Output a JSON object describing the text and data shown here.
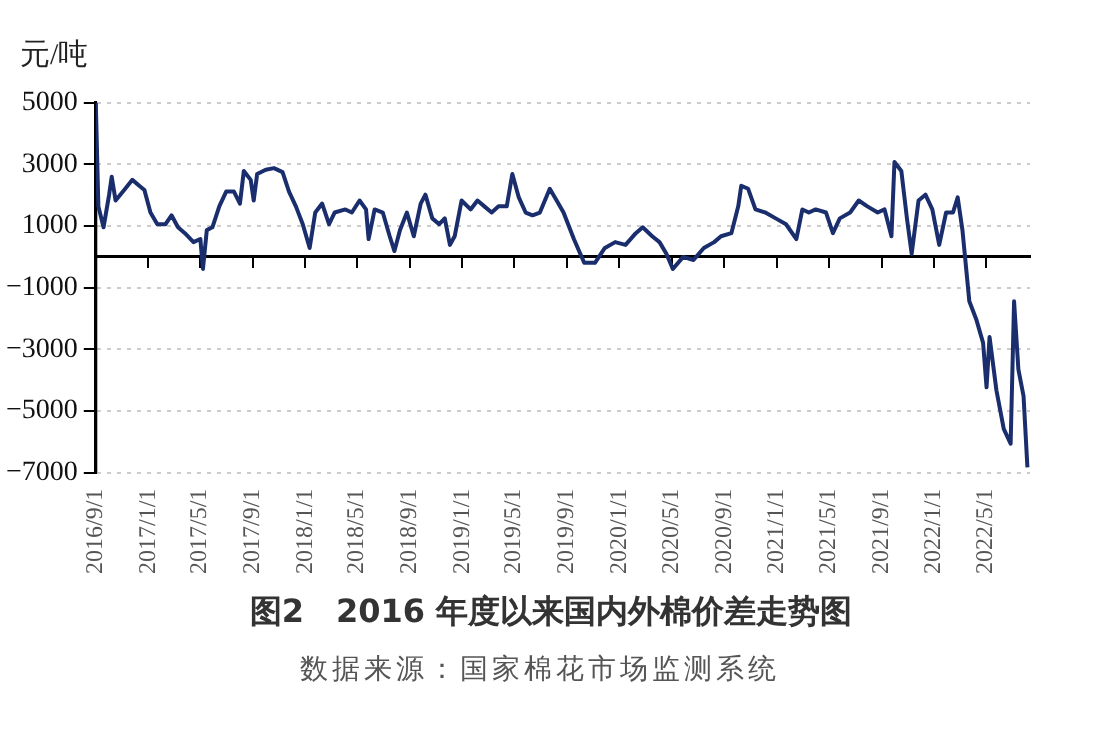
{
  "chart_data": {
    "type": "line",
    "title": "图2　2016 年度以来国内外棉价差走势图",
    "ylabel": "元/吨",
    "annotations": [
      "数据来源：国家棉花市场监测系统"
    ],
    "xlim": [
      "2016-09-01",
      "2022-08-12"
    ],
    "xticks": [
      {
        "value": "2016-09-01",
        "label": "2016/9/1"
      },
      {
        "value": "2017-01-01",
        "label": "2017/1/1"
      },
      {
        "value": "2017-05-01",
        "label": "2017/5/1"
      },
      {
        "value": "2017-09-01",
        "label": "2017/9/1"
      },
      {
        "value": "2018-01-01",
        "label": "2018/1/1"
      },
      {
        "value": "2018-05-01",
        "label": "2018/5/1"
      },
      {
        "value": "2018-09-01",
        "label": "2018/9/1"
      },
      {
        "value": "2019-01-01",
        "label": "2019/1/1"
      },
      {
        "value": "2019-05-01",
        "label": "2019/5/1"
      },
      {
        "value": "2019-09-01",
        "label": "2019/9/1"
      },
      {
        "value": "2020-01-01",
        "label": "2020/1/1"
      },
      {
        "value": "2020-05-01",
        "label": "2020/5/1"
      },
      {
        "value": "2020-09-01",
        "label": "2020/9/1"
      },
      {
        "value": "2021-01-01",
        "label": "2021/1/1"
      },
      {
        "value": "2021-05-01",
        "label": "2021/5/1"
      },
      {
        "value": "2021-09-01",
        "label": "2021/9/1"
      },
      {
        "value": "2022-01-01",
        "label": "2022/1/1"
      },
      {
        "value": "2022-05-01",
        "label": "2022/5/1"
      }
    ],
    "ylim": [
      -7000,
      5000
    ],
    "yticks": [
      5000,
      3000,
      1000,
      -1000,
      -3000,
      -5000,
      -7000
    ],
    "grid": "y",
    "legend": false,
    "marker": "none",
    "series": [
      {
        "color": "#1a2e6e",
        "x": [
          "2016-09-01",
          "2016-09-07",
          "2016-09-19",
          "2016-10-02",
          "2016-10-08",
          "2016-10-17",
          "2016-11-06",
          "2016-11-25",
          "2016-12-11",
          "2016-12-23",
          "2017-01-06",
          "2017-01-22",
          "2017-02-10",
          "2017-02-24",
          "2017-03-11",
          "2017-03-27",
          "2017-04-16",
          "2017-05-02",
          "2017-05-08",
          "2017-05-17",
          "2017-05-30",
          "2017-06-15",
          "2017-07-01",
          "2017-07-19",
          "2017-08-02",
          "2017-08-11",
          "2017-08-27",
          "2017-09-03",
          "2017-09-11",
          "2017-10-01",
          "2017-10-20",
          "2017-11-09",
          "2017-11-24",
          "2017-12-10",
          "2017-12-26",
          "2018-01-11",
          "2018-01-24",
          "2018-02-09",
          "2018-02-25",
          "2018-03-10",
          "2018-04-04",
          "2018-04-19",
          "2018-05-07",
          "2018-05-22",
          "2018-05-28",
          "2018-06-11",
          "2018-06-30",
          "2018-07-16",
          "2018-07-27",
          "2018-08-09",
          "2018-08-25",
          "2018-09-10",
          "2018-09-26",
          "2018-10-07",
          "2018-10-23",
          "2018-11-08",
          "2018-11-21",
          "2018-12-03",
          "2018-12-14",
          "2018-12-30",
          "2019-01-20",
          "2019-02-05",
          "2019-02-21",
          "2019-03-10",
          "2019-03-26",
          "2019-04-14",
          "2019-04-27",
          "2019-05-12",
          "2019-05-28",
          "2019-06-13",
          "2019-06-30",
          "2019-07-23",
          "2019-08-08",
          "2019-08-24",
          "2019-09-17",
          "2019-10-11",
          "2019-11-05",
          "2019-11-28",
          "2019-12-22",
          "2020-01-15",
          "2020-02-08",
          "2020-02-24",
          "2020-03-17",
          "2020-04-03",
          "2020-04-19",
          "2020-05-04",
          "2020-05-28",
          "2020-06-21",
          "2020-07-15",
          "2020-08-08",
          "2020-08-24",
          "2020-09-17",
          "2020-10-03",
          "2020-10-10",
          "2020-10-26",
          "2020-11-12",
          "2020-12-05",
          "2020-12-29",
          "2021-01-22",
          "2021-02-15",
          "2021-03-01",
          "2021-03-16",
          "2021-04-01",
          "2021-04-25",
          "2021-05-11",
          "2021-05-27",
          "2021-06-20",
          "2021-07-10",
          "2021-07-30",
          "2021-08-23",
          "2021-09-08",
          "2021-09-24",
          "2021-10-01",
          "2021-10-17",
          "2021-10-30",
          "2021-11-10",
          "2021-11-26",
          "2021-12-12",
          "2021-12-28",
          "2022-01-13",
          "2022-01-29",
          "2022-02-14",
          "2022-02-25",
          "2022-03-08",
          "2022-03-24",
          "2022-04-09",
          "2022-04-25",
          "2022-05-03",
          "2022-05-10",
          "2022-05-26",
          "2022-06-12",
          "2022-06-28",
          "2022-07-06",
          "2022-07-16",
          "2022-07-28",
          "2022-08-06"
        ],
        "values": [
          5000,
          1640,
          960,
          2020,
          2600,
          1830,
          2170,
          2500,
          2310,
          2170,
          1440,
          1060,
          1060,
          1350,
          960,
          770,
          480,
          580,
          -390,
          870,
          960,
          1640,
          2120,
          2120,
          1730,
          2790,
          2500,
          1830,
          2690,
          2830,
          2880,
          2750,
          2120,
          1640,
          1060,
          290,
          1440,
          1730,
          1060,
          1440,
          1540,
          1440,
          1830,
          1540,
          580,
          1540,
          1440,
          670,
          190,
          870,
          1440,
          670,
          1730,
          2020,
          1250,
          1060,
          1250,
          390,
          670,
          1830,
          1540,
          1830,
          1640,
          1440,
          1640,
          1640,
          2690,
          1930,
          1440,
          1350,
          1440,
          2210,
          1830,
          1440,
          580,
          -190,
          -190,
          290,
          480,
          390,
          770,
          960,
          670,
          480,
          100,
          -390,
          0,
          -100,
          290,
          480,
          670,
          770,
          1640,
          2310,
          2210,
          1540,
          1440,
          1250,
          1060,
          580,
          1540,
          1440,
          1540,
          1440,
          770,
          1250,
          1440,
          1830,
          1640,
          1440,
          1540,
          670,
          3080,
          2790,
          1250,
          100,
          1830,
          2020,
          1540,
          390,
          1440,
          1440,
          1930,
          870,
          -1440,
          -2020,
          -2790,
          -4230,
          -2600,
          -4330,
          -5580,
          -6060,
          -1440,
          -3650,
          -4520,
          -6830
        ]
      }
    ]
  }
}
